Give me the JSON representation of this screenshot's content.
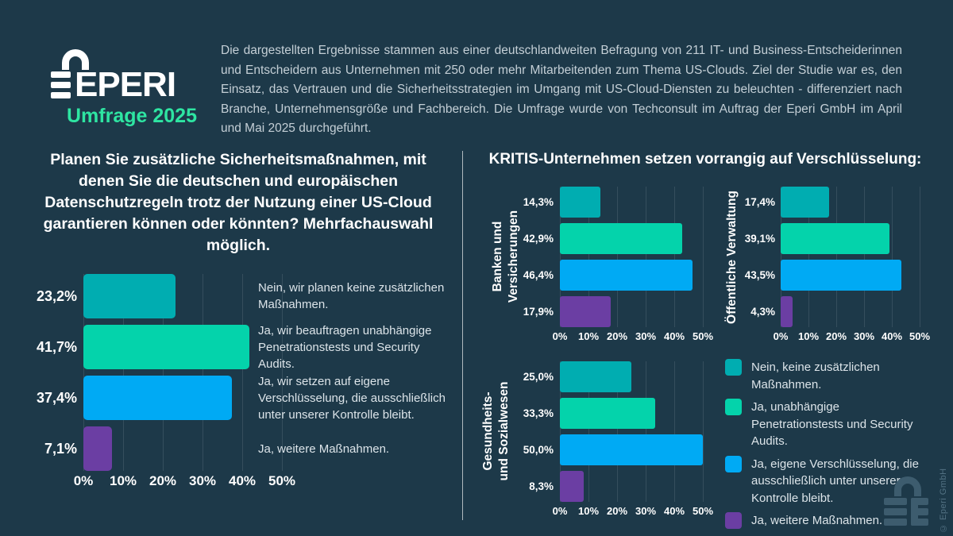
{
  "colors": {
    "background": "#1d3949",
    "accent_green": "#2ee5a2",
    "teal": "#00adb1",
    "mint": "#04d3ab",
    "blue": "#00aaf4",
    "purple": "#6b3ea3",
    "text_light": "#c4cfd6",
    "text_white": "#ffffff",
    "watermark": "#3d5c6e"
  },
  "header": {
    "logo_text": "EPERI",
    "logo_subtitle": "Umfrage 2025",
    "description": "Die dargestellten Ergebnisse stammen aus einer deutschlandweiten Befragung von 211 IT- und Business-Entscheiderinnen und Entscheidern aus Unternehmen mit 250 oder mehr Mitarbeitenden zum Thema US-Clouds. Ziel der Studie war es, den Einsatz, das Vertrauen und die Sicherheitsstrategien im Umgang mit US-Cloud-Diensten zu beleuchten - differenziert nach Branche, Unternehmensgröße und Fachbereich. Die Umfrage wurde von Techconsult im Auftrag der Eperi GmbH im April und Mai 2025 durchgeführt."
  },
  "right_panel": {
    "title": "KRITIS-Unternehmen setzen vorrangig auf Verschlüsselung:"
  },
  "legend": {
    "items": [
      {
        "label": "Nein, keine zusätzlichen Maßnahmen.",
        "color": "#00adb1"
      },
      {
        "label": "Ja, unabhängige Penetrationstests und Security Audits.",
        "color": "#04d3ab"
      },
      {
        "label": "Ja, eigene Verschlüsselung, die ausschließlich unter unserer Kontrolle bleibt.",
        "color": "#00aaf4"
      },
      {
        "label": "Ja, weitere Maßnahmen.",
        "color": "#6b3ea3"
      }
    ]
  },
  "chart_data": [
    {
      "id": "main",
      "type": "bar",
      "orientation": "horizontal",
      "question": "Planen Sie zusätzliche Sicherheitsmaßnahmen, mit denen Sie die deutschen und europäischen Datenschutzregeln trotz der Nutzung einer US-Cloud garantieren können oder könnten? Mehrfachauswahl möglich.",
      "categories": [
        "Nein, wir planen keine zusätzlichen Maßnahmen.",
        "Ja, wir beauftragen unabhängige Penetrationstests und Security Audits.",
        "Ja, wir setzen auf eigene Verschlüsselung, die ausschließlich unter unserer Kontrolle bleibt.",
        "Ja, weitere Maßnahmen."
      ],
      "values": [
        23.2,
        41.7,
        37.4,
        7.1
      ],
      "value_labels": [
        "23,2%",
        "41,7%",
        "37,4%",
        "7,1%"
      ],
      "bar_colors": [
        "#00adb1",
        "#04d3ab",
        "#00aaf4",
        "#6b3ea3"
      ],
      "xlim": [
        0,
        50
      ],
      "tick_labels": [
        "0%",
        "10%",
        "20%",
        "30%",
        "40%",
        "50%"
      ],
      "grid": true
    },
    {
      "id": "banken",
      "type": "bar",
      "orientation": "horizontal",
      "title": "Banken und Versicherungen",
      "title_lines": [
        "Banken und",
        "Versicherungen"
      ],
      "categories": [
        "Nein, keine zusätzlichen Maßnahmen.",
        "Ja, unabhängige Penetrationstests und Security Audits.",
        "Ja, eigene Verschlüsselung, die ausschließlich unter unserer Kontrolle bleibt.",
        "Ja, weitere Maßnahmen."
      ],
      "values": [
        14.3,
        42.9,
        46.4,
        17.9
      ],
      "value_labels": [
        "14,3%",
        "42,9%",
        "46,4%",
        "17,9%"
      ],
      "bar_colors": [
        "#00adb1",
        "#04d3ab",
        "#00aaf4",
        "#6b3ea3"
      ],
      "xlim": [
        0,
        50
      ],
      "tick_labels": [
        "0%",
        "10%",
        "20%",
        "30%",
        "40%",
        "50%"
      ],
      "grid": true
    },
    {
      "id": "verwaltung",
      "type": "bar",
      "orientation": "horizontal",
      "title": "Öffentliche Verwaltung",
      "title_lines": [
        "Öffentliche Verwaltung"
      ],
      "categories": [
        "Nein, keine zusätzlichen Maßnahmen.",
        "Ja, unabhängige Penetrationstests und Security Audits.",
        "Ja, eigene Verschlüsselung, die ausschließlich unter unserer Kontrolle bleibt.",
        "Ja, weitere Maßnahmen."
      ],
      "values": [
        17.4,
        39.1,
        43.5,
        4.3
      ],
      "value_labels": [
        "17,4%",
        "39,1%",
        "43,5%",
        "4,3%"
      ],
      "bar_colors": [
        "#00adb1",
        "#04d3ab",
        "#00aaf4",
        "#6b3ea3"
      ],
      "xlim": [
        0,
        50
      ],
      "tick_labels": [
        "0%",
        "10%",
        "20%",
        "30%",
        "40%",
        "50%"
      ],
      "grid": true
    },
    {
      "id": "gesundheit",
      "type": "bar",
      "orientation": "horizontal",
      "title": "Gesundheits- und Sozialwesen",
      "title_lines": [
        "Gesundheits-",
        "und Sozialwesen"
      ],
      "categories": [
        "Nein, keine zusätzlichen Maßnahmen.",
        "Ja, unabhängige Penetrationstests und Security Audits.",
        "Ja, eigene Verschlüsselung, die ausschließlich unter unserer Kontrolle bleibt.",
        "Ja, weitere Maßnahmen."
      ],
      "values": [
        25.0,
        33.3,
        50.0,
        8.3
      ],
      "value_labels": [
        "25,0%",
        "33,3%",
        "50,0%",
        "8,3%"
      ],
      "bar_colors": [
        "#00adb1",
        "#04d3ab",
        "#00aaf4",
        "#6b3ea3"
      ],
      "xlim": [
        0,
        50
      ],
      "tick_labels": [
        "0%",
        "10%",
        "20%",
        "30%",
        "40%",
        "50%"
      ],
      "grid": true
    }
  ],
  "footer": {
    "copyright": "© Eperi GmbH"
  }
}
